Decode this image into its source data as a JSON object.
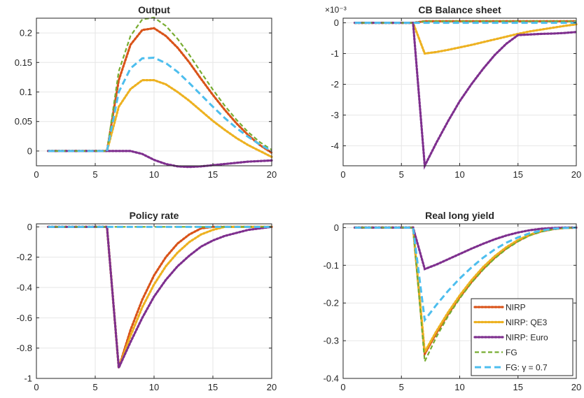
{
  "colors": {
    "NIRP": "#D95319",
    "NIRP: QE3": "#EDB120",
    "NIRP: Euro": "#7E2F8E",
    "FG": "#77AC30",
    "FG: gamma = 0.7": "#4DBEEE",
    "axis": "#262626",
    "grid": "#e6e6e6"
  },
  "legend": {
    "placement": "bottom-right of Real long yield panel",
    "entries": [
      "NIRP",
      "NIRP: QE3",
      "NIRP: Euro",
      "FG",
      "FG: γ = 0.7"
    ]
  },
  "chart_data": [
    {
      "type": "line",
      "title": "Output",
      "xlabel": "",
      "ylabel": "",
      "xlim": [
        0,
        20
      ],
      "ylim": [
        -0.025,
        0.225
      ],
      "xticks": [
        0,
        5,
        10,
        15,
        20
      ],
      "xtick_labels": [
        "0",
        "5",
        "10",
        "15",
        "20"
      ],
      "yticks": [
        0,
        0.05,
        0.1,
        0.15,
        0.2
      ],
      "ytick_labels": [
        "0",
        "0.05",
        "0.1",
        "0.15",
        "0.2"
      ],
      "scale_label": "",
      "grid": true,
      "x": [
        1,
        2,
        3,
        4,
        5,
        6,
        7,
        8,
        9,
        10,
        11,
        12,
        13,
        14,
        15,
        16,
        17,
        18,
        19,
        20
      ],
      "series": [
        {
          "name": "NIRP",
          "style": "dotted",
          "values": [
            0,
            0,
            0,
            0,
            0,
            0,
            0.12,
            0.18,
            0.205,
            0.208,
            0.195,
            0.175,
            0.15,
            0.122,
            0.095,
            0.07,
            0.047,
            0.027,
            0.01,
            -0.003
          ]
        },
        {
          "name": "NIRP: QE3",
          "style": "dotted",
          "values": [
            0,
            0,
            0,
            0,
            0,
            0,
            0.075,
            0.105,
            0.12,
            0.12,
            0.113,
            0.1,
            0.085,
            0.068,
            0.051,
            0.036,
            0.022,
            0.01,
            0,
            -0.01
          ]
        },
        {
          "name": "NIRP: Euro",
          "style": "dotted",
          "values": [
            0,
            0,
            0,
            0,
            0,
            0,
            0,
            0,
            -0.005,
            -0.015,
            -0.022,
            -0.026,
            -0.027,
            -0.026,
            -0.024,
            -0.022,
            -0.02,
            -0.018,
            -0.017,
            -0.016
          ]
        },
        {
          "name": "FG",
          "style": "dashed",
          "values": [
            0,
            0,
            0,
            0,
            0,
            0,
            0.135,
            0.195,
            0.223,
            0.226,
            0.212,
            0.19,
            0.163,
            0.133,
            0.104,
            0.077,
            0.053,
            0.032,
            0.015,
            0.002
          ]
        },
        {
          "name": "FG: γ = 0.7",
          "style": "dashed-long",
          "values": [
            0,
            0,
            0,
            0,
            0,
            0,
            0.1,
            0.14,
            0.157,
            0.158,
            0.149,
            0.134,
            0.115,
            0.095,
            0.075,
            0.056,
            0.039,
            0.024,
            0.011,
            0
          ]
        }
      ]
    },
    {
      "type": "line",
      "title": "CB Balance sheet",
      "xlabel": "",
      "ylabel": "",
      "xlim": [
        0,
        20
      ],
      "ylim": [
        -4.65,
        0.15
      ],
      "xticks": [
        0,
        5,
        10,
        15,
        20
      ],
      "xtick_labels": [
        "0",
        "5",
        "10",
        "15",
        "20"
      ],
      "yticks": [
        -4,
        -3,
        -2,
        -1,
        0
      ],
      "ytick_labels": [
        "-4",
        "-3",
        "-2",
        "-1",
        "0"
      ],
      "scale_label": "×10⁻³",
      "grid": true,
      "x": [
        1,
        2,
        3,
        4,
        5,
        6,
        7,
        8,
        9,
        10,
        11,
        12,
        13,
        14,
        15,
        16,
        17,
        18,
        19,
        20
      ],
      "series": [
        {
          "name": "NIRP",
          "style": "dotted",
          "values": [
            0,
            0,
            0,
            0,
            0,
            0,
            0.05,
            0.05,
            0.05,
            0.05,
            0.05,
            0.05,
            0.05,
            0.05,
            0.05,
            0.05,
            0.05,
            0.05,
            0.05,
            0.05
          ]
        },
        {
          "name": "NIRP: QE3",
          "style": "dotted",
          "values": [
            0,
            0,
            0,
            0,
            0,
            0,
            -1.0,
            -0.95,
            -0.88,
            -0.8,
            -0.72,
            -0.63,
            -0.54,
            -0.45,
            -0.36,
            -0.28,
            -0.22,
            -0.16,
            -0.1,
            -0.05
          ]
        },
        {
          "name": "NIRP: Euro",
          "style": "dotted",
          "values": [
            0,
            0,
            0,
            0,
            0,
            0,
            -4.65,
            -3.9,
            -3.2,
            -2.55,
            -2.0,
            -1.5,
            -1.05,
            -0.68,
            -0.4,
            -0.38,
            -0.36,
            -0.35,
            -0.33,
            -0.3
          ]
        },
        {
          "name": "FG",
          "style": "dashed",
          "values": [
            0,
            0,
            0,
            0,
            0,
            0,
            0.05,
            0.05,
            0.05,
            0.05,
            0.05,
            0.05,
            0.05,
            0.05,
            0.05,
            0.05,
            0.05,
            0.05,
            0.05,
            0.05
          ]
        },
        {
          "name": "FG: γ = 0.7",
          "style": "dashed-long",
          "values": [
            0,
            0,
            0,
            0,
            0,
            0,
            0,
            0,
            0,
            0,
            0,
            0,
            0,
            0,
            0,
            0,
            0,
            0,
            0,
            0
          ]
        }
      ]
    },
    {
      "type": "line",
      "title": "Policy rate",
      "xlabel": "",
      "ylabel": "",
      "xlim": [
        0,
        20
      ],
      "ylim": [
        -1,
        0.02
      ],
      "xticks": [
        0,
        5,
        10,
        15,
        20
      ],
      "xtick_labels": [
        "0",
        "5",
        "10",
        "15",
        "20"
      ],
      "yticks": [
        -1,
        -0.8,
        -0.6,
        -0.4,
        -0.2,
        0
      ],
      "ytick_labels": [
        "-1",
        "-0.8",
        "-0.6",
        "-0.4",
        "-0.2",
        "0"
      ],
      "scale_label": "",
      "grid": true,
      "x": [
        1,
        2,
        3,
        4,
        5,
        6,
        7,
        8,
        9,
        10,
        11,
        12,
        13,
        14,
        15,
        16,
        17,
        18,
        19,
        20
      ],
      "series": [
        {
          "name": "NIRP",
          "style": "dotted",
          "values": [
            0,
            0,
            0,
            0,
            0,
            0,
            -0.93,
            -0.68,
            -0.48,
            -0.32,
            -0.2,
            -0.11,
            -0.05,
            -0.01,
            0,
            0,
            0,
            0,
            0,
            0
          ]
        },
        {
          "name": "NIRP: QE3",
          "style": "dotted",
          "values": [
            0,
            0,
            0,
            0,
            0,
            0,
            -0.93,
            -0.72,
            -0.53,
            -0.38,
            -0.26,
            -0.17,
            -0.1,
            -0.05,
            -0.02,
            0,
            0,
            0,
            0,
            0
          ]
        },
        {
          "name": "NIRP: Euro",
          "style": "dotted",
          "values": [
            0,
            0,
            0,
            0,
            0,
            0,
            -0.93,
            -0.76,
            -0.6,
            -0.46,
            -0.35,
            -0.26,
            -0.19,
            -0.13,
            -0.09,
            -0.06,
            -0.04,
            -0.02,
            -0.01,
            0
          ]
        },
        {
          "name": "FG",
          "style": "dashed",
          "values": [
            0,
            0,
            0,
            0,
            0,
            0,
            0,
            0,
            0,
            0,
            0,
            0,
            0,
            0,
            0,
            0,
            0,
            0,
            0,
            0
          ]
        },
        {
          "name": "FG: γ = 0.7",
          "style": "dashed-long",
          "values": [
            0,
            0,
            0,
            0,
            0,
            0,
            0,
            0,
            0,
            0,
            0,
            0,
            0,
            0,
            0,
            0,
            0,
            0,
            0,
            0
          ]
        }
      ]
    },
    {
      "type": "line",
      "title": "Real long yield",
      "xlabel": "",
      "ylabel": "",
      "xlim": [
        0,
        20
      ],
      "ylim": [
        -0.4,
        0.01
      ],
      "xticks": [
        0,
        5,
        10,
        15,
        20
      ],
      "xtick_labels": [
        "0",
        "5",
        "10",
        "15",
        "20"
      ],
      "yticks": [
        -0.4,
        -0.3,
        -0.2,
        -0.1,
        0
      ],
      "ytick_labels": [
        "-0.4",
        "-0.3",
        "-0.2",
        "-0.1",
        "0"
      ],
      "scale_label": "",
      "grid": true,
      "x": [
        1,
        2,
        3,
        4,
        5,
        6,
        7,
        8,
        9,
        10,
        11,
        12,
        13,
        14,
        15,
        16,
        17,
        18,
        19,
        20
      ],
      "series": [
        {
          "name": "NIRP",
          "style": "dotted",
          "values": [
            0,
            0,
            0,
            0,
            0,
            0,
            -0.335,
            -0.28,
            -0.23,
            -0.185,
            -0.145,
            -0.11,
            -0.08,
            -0.055,
            -0.035,
            -0.02,
            -0.01,
            -0.004,
            -0.001,
            0
          ]
        },
        {
          "name": "NIRP: QE3",
          "style": "dotted",
          "values": [
            0,
            0,
            0,
            0,
            0,
            0,
            -0.33,
            -0.275,
            -0.225,
            -0.18,
            -0.14,
            -0.105,
            -0.076,
            -0.052,
            -0.033,
            -0.019,
            -0.009,
            -0.003,
            -0.001,
            0
          ]
        },
        {
          "name": "NIRP: Euro",
          "style": "dotted",
          "values": [
            0,
            0,
            0,
            0,
            0,
            0,
            -0.11,
            -0.098,
            -0.084,
            -0.07,
            -0.056,
            -0.043,
            -0.031,
            -0.021,
            -0.013,
            -0.007,
            -0.003,
            -0.001,
            0,
            0
          ]
        },
        {
          "name": "FG",
          "style": "dashed",
          "values": [
            0,
            0,
            0,
            0,
            0,
            0,
            -0.355,
            -0.29,
            -0.235,
            -0.188,
            -0.147,
            -0.112,
            -0.082,
            -0.057,
            -0.037,
            -0.021,
            -0.011,
            -0.005,
            -0.001,
            0
          ]
        },
        {
          "name": "FG: γ = 0.7",
          "style": "dashed-long",
          "values": [
            0,
            0,
            0,
            0,
            0,
            0,
            -0.245,
            -0.205,
            -0.168,
            -0.135,
            -0.106,
            -0.08,
            -0.058,
            -0.04,
            -0.026,
            -0.015,
            -0.008,
            -0.003,
            -0.001,
            0
          ]
        }
      ]
    }
  ]
}
